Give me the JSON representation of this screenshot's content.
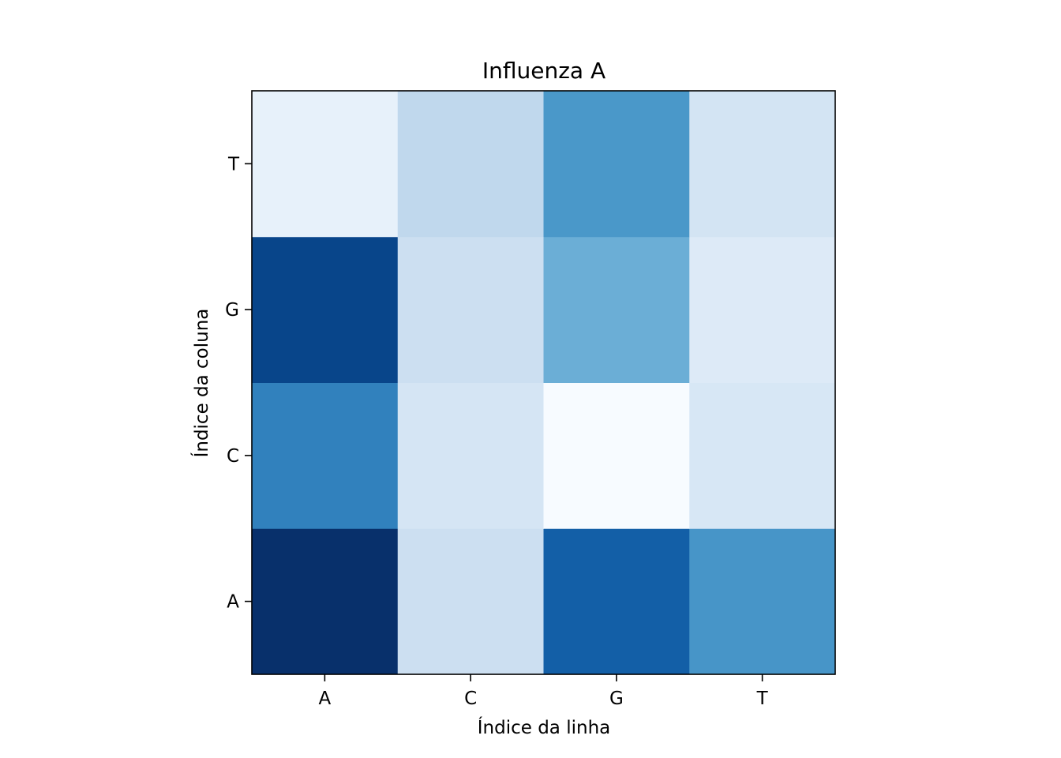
{
  "chart_data": {
    "type": "heatmap",
    "title": "Influenza A",
    "xlabel": "Índice da linha",
    "ylabel": "Índice da coluna",
    "x_categories": [
      "A",
      "C",
      "G",
      "T"
    ],
    "y_categories": [
      "A",
      "C",
      "G",
      "T"
    ],
    "colormap": "Blues",
    "colorbar": false,
    "grid": false,
    "values": [
      [
        1.0,
        0.22,
        0.82,
        0.61
      ],
      [
        0.69,
        0.17,
        0.0,
        0.16
      ],
      [
        0.92,
        0.22,
        0.5,
        0.13
      ],
      [
        0.08,
        0.27,
        0.6,
        0.18
      ]
    ]
  }
}
